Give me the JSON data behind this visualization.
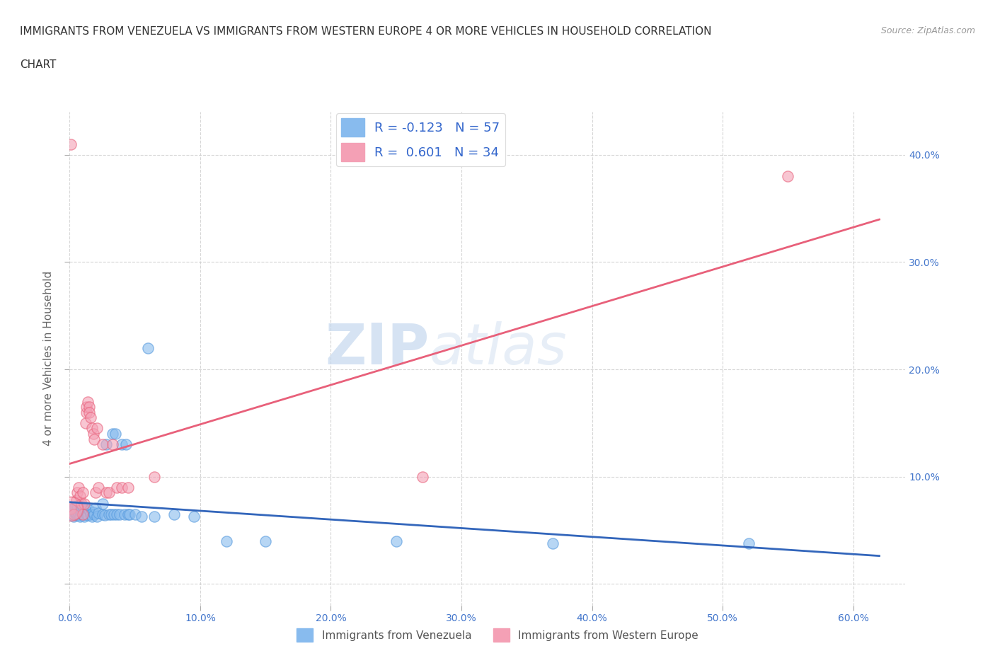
{
  "title_line1": "IMMIGRANTS FROM VENEZUELA VS IMMIGRANTS FROM WESTERN EUROPE 4 OR MORE VEHICLES IN HOUSEHOLD CORRELATION",
  "title_line2": "CHART",
  "source": "Source: ZipAtlas.com",
  "ylabel": "4 or more Vehicles in Household",
  "xlim": [
    0.0,
    0.64
  ],
  "ylim": [
    -0.02,
    0.44
  ],
  "xticks": [
    0.0,
    0.1,
    0.2,
    0.3,
    0.4,
    0.5,
    0.6
  ],
  "xticklabels": [
    "0.0%",
    "10.0%",
    "20.0%",
    "30.0%",
    "40.0%",
    "50.0%",
    "60.0%"
  ],
  "yticks": [
    0.0,
    0.1,
    0.2,
    0.3,
    0.4
  ],
  "yticklabels": [
    "",
    "10.0%",
    "20.0%",
    "30.0%",
    "40.0%"
  ],
  "watermark_zip": "ZIP",
  "watermark_atlas": "atlas",
  "venezuela_color": "#88bbee",
  "venezuela_edge": "#5599dd",
  "western_europe_color": "#f4a0b5",
  "western_europe_edge": "#e8607a",
  "venezuela_line_color": "#3366bb",
  "western_europe_line_color": "#e8607a",
  "venezuela_R": -0.123,
  "venezuela_N": 57,
  "western_europe_R": 0.601,
  "western_europe_N": 34,
  "venezuela_points": [
    [
      0.001,
      0.065
    ],
    [
      0.002,
      0.068
    ],
    [
      0.003,
      0.063
    ],
    [
      0.003,
      0.07
    ],
    [
      0.004,
      0.066
    ],
    [
      0.004,
      0.072
    ],
    [
      0.005,
      0.064
    ],
    [
      0.005,
      0.069
    ],
    [
      0.006,
      0.065
    ],
    [
      0.006,
      0.073
    ],
    [
      0.007,
      0.066
    ],
    [
      0.007,
      0.064
    ],
    [
      0.008,
      0.068
    ],
    [
      0.008,
      0.063
    ],
    [
      0.009,
      0.066
    ],
    [
      0.009,
      0.07
    ],
    [
      0.01,
      0.065
    ],
    [
      0.01,
      0.072
    ],
    [
      0.011,
      0.063
    ],
    [
      0.012,
      0.068
    ],
    [
      0.013,
      0.065
    ],
    [
      0.014,
      0.064
    ],
    [
      0.015,
      0.069
    ],
    [
      0.016,
      0.065
    ],
    [
      0.017,
      0.063
    ],
    [
      0.018,
      0.067
    ],
    [
      0.019,
      0.065
    ],
    [
      0.02,
      0.071
    ],
    [
      0.021,
      0.063
    ],
    [
      0.022,
      0.066
    ],
    [
      0.025,
      0.065
    ],
    [
      0.025,
      0.075
    ],
    [
      0.027,
      0.064
    ],
    [
      0.028,
      0.13
    ],
    [
      0.03,
      0.065
    ],
    [
      0.032,
      0.065
    ],
    [
      0.033,
      0.14
    ],
    [
      0.034,
      0.065
    ],
    [
      0.035,
      0.14
    ],
    [
      0.036,
      0.065
    ],
    [
      0.038,
      0.065
    ],
    [
      0.04,
      0.13
    ],
    [
      0.042,
      0.065
    ],
    [
      0.043,
      0.13
    ],
    [
      0.045,
      0.065
    ],
    [
      0.046,
      0.065
    ],
    [
      0.05,
      0.065
    ],
    [
      0.055,
      0.063
    ],
    [
      0.06,
      0.22
    ],
    [
      0.065,
      0.063
    ],
    [
      0.08,
      0.065
    ],
    [
      0.095,
      0.063
    ],
    [
      0.12,
      0.04
    ],
    [
      0.15,
      0.04
    ],
    [
      0.25,
      0.04
    ],
    [
      0.37,
      0.038
    ],
    [
      0.52,
      0.038
    ]
  ],
  "western_europe_points": [
    [
      0.001,
      0.07
    ],
    [
      0.003,
      0.065
    ],
    [
      0.005,
      0.078
    ],
    [
      0.006,
      0.085
    ],
    [
      0.007,
      0.09
    ],
    [
      0.008,
      0.082
    ],
    [
      0.009,
      0.075
    ],
    [
      0.01,
      0.065
    ],
    [
      0.01,
      0.085
    ],
    [
      0.011,
      0.075
    ],
    [
      0.012,
      0.15
    ],
    [
      0.013,
      0.16
    ],
    [
      0.013,
      0.165
    ],
    [
      0.014,
      0.17
    ],
    [
      0.015,
      0.165
    ],
    [
      0.015,
      0.16
    ],
    [
      0.016,
      0.155
    ],
    [
      0.017,
      0.145
    ],
    [
      0.018,
      0.14
    ],
    [
      0.019,
      0.135
    ],
    [
      0.02,
      0.085
    ],
    [
      0.021,
      0.145
    ],
    [
      0.022,
      0.09
    ],
    [
      0.025,
      0.13
    ],
    [
      0.028,
      0.085
    ],
    [
      0.03,
      0.085
    ],
    [
      0.033,
      0.13
    ],
    [
      0.036,
      0.09
    ],
    [
      0.04,
      0.09
    ],
    [
      0.045,
      0.09
    ],
    [
      0.065,
      0.1
    ],
    [
      0.27,
      0.1
    ],
    [
      0.55,
      0.38
    ],
    [
      0.001,
      0.41
    ]
  ]
}
